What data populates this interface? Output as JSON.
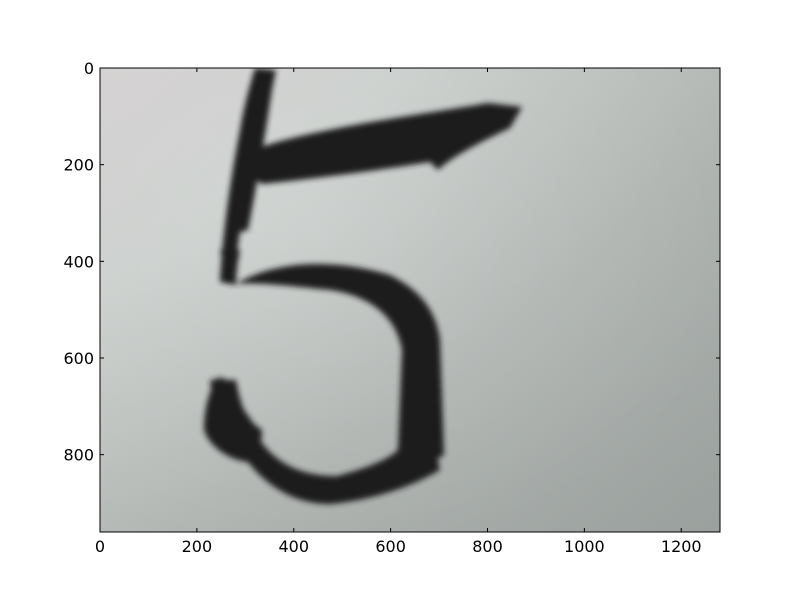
{
  "figure": {
    "axes": {
      "x_ticks": [
        "0",
        "200",
        "400",
        "600",
        "800",
        "1000",
        "1200"
      ],
      "y_ticks": [
        "0",
        "200",
        "400",
        "600",
        "800"
      ],
      "x_range": [
        0,
        1280
      ],
      "y_range": [
        960,
        0
      ],
      "y_inverted": true
    },
    "image": {
      "subject": "handwritten-digit-5",
      "stroke_color": "#1c1c1c",
      "paper_color": "#bdc2bf"
    }
  }
}
